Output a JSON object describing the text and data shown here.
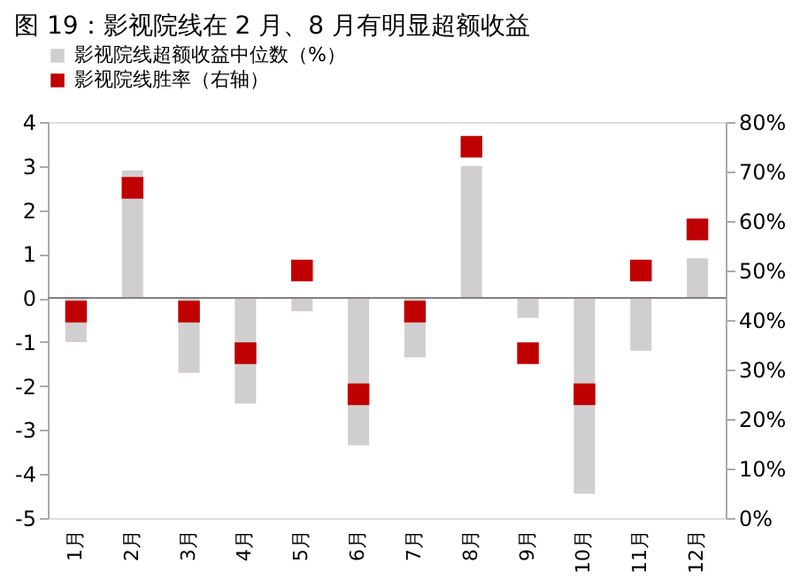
{
  "chart_data": {
    "type": "bar",
    "title": "图 19：影视院线在 2 月、8 月有明显超额收益",
    "categories": [
      "1月",
      "2月",
      "3月",
      "4月",
      "5月",
      "6月",
      "7月",
      "8月",
      "9月",
      "10月",
      "11月",
      "12月"
    ],
    "series": [
      {
        "name": "影视院线超额收益中位数（%）",
        "type": "bar",
        "color": "#d0cece",
        "values": [
          -1.0,
          2.9,
          -1.7,
          -2.4,
          -0.3,
          -3.35,
          -1.35,
          3.0,
          -0.45,
          -4.45,
          -1.2,
          0.9
        ]
      },
      {
        "name": "影视院线胜率（右轴）",
        "type": "scatter",
        "axis": "y2",
        "color": "#c00000",
        "values": [
          41.7,
          66.7,
          41.7,
          33.3,
          50,
          25,
          41.7,
          75,
          33.3,
          25,
          50,
          58.3
        ]
      }
    ],
    "ylim": [
      -5,
      4
    ],
    "yticks": [
      -5,
      -4,
      -3,
      -2,
      -1,
      0,
      1,
      2,
      3,
      4
    ],
    "y2lim": [
      0,
      80
    ],
    "y2ticks": [
      {
        "value": 0,
        "label": "0%"
      },
      {
        "value": 10,
        "label": "10%"
      },
      {
        "value": 20,
        "label": "20%"
      },
      {
        "value": 30,
        "label": "30%"
      },
      {
        "value": 40,
        "label": "40%"
      },
      {
        "value": 50,
        "label": "50%"
      },
      {
        "value": 60,
        "label": "60%"
      },
      {
        "value": 70,
        "label": "70%"
      },
      {
        "value": 80,
        "label": "80%"
      }
    ],
    "ref_lines": [
      {
        "axis": "y",
        "value": 0,
        "color": "#808080"
      }
    ],
    "marker": "square",
    "grid": false,
    "legend": "top"
  }
}
